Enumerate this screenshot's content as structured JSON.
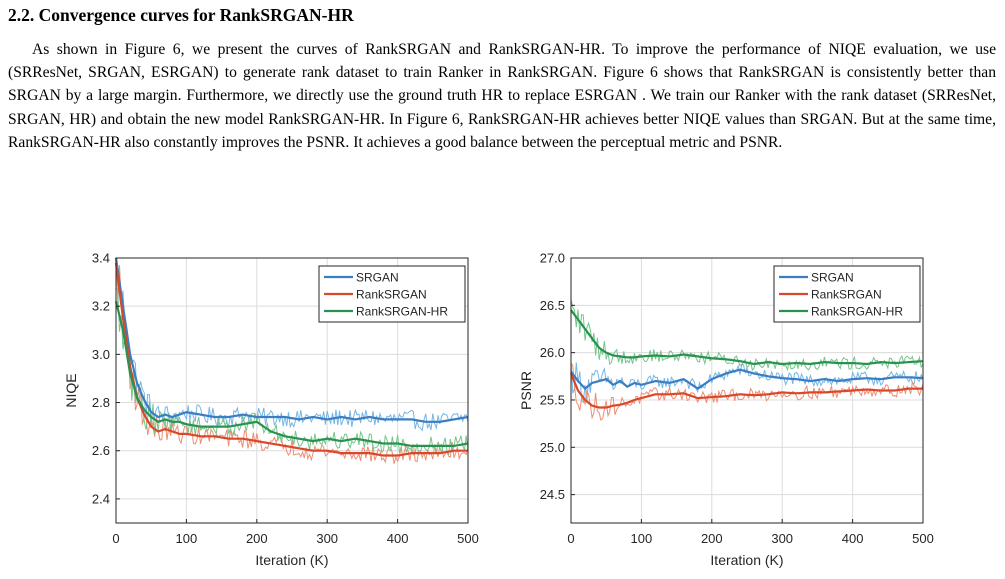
{
  "section": {
    "heading": "2.2. Convergence curves for RankSRGAN-HR",
    "paragraph": "As shown in Figure 6, we present the curves of RankSRGAN and RankSRGAN-HR. To improve the performance of NIQE evaluation, we use (SRResNet, SRGAN, ESRGAN) to generate rank dataset to train Ranker in RankSRGAN. Figure 6 shows that RankSRGAN is consistently better than SRGAN by a large margin. Furthermore, we directly use the ground truth HR to replace ESRGAN . We train our Ranker with the rank dataset (SRResNet, SRGAN, HR) and obtain the new model RankSRGAN-HR. In Figure 6, RankSRGAN-HR achieves better NIQE values than SRGAN. But at the same time, RankSRGAN-HR also constantly improves the PSNR. It achieves a good balance between the perceptual metric and PSNR."
  },
  "colors": {
    "SRGAN": "#3a7dc1",
    "SRGAN_raw": "#74b6e6",
    "RankSRGAN": "#d8482b",
    "RankSRGAN_raw": "#ee8d72",
    "RankSRGAN-HR": "#2a9150",
    "RankSRGAN-HR_raw": "#74c58a",
    "grid": "#dcdcdc"
  },
  "chart_data": [
    {
      "type": "line",
      "title": "",
      "xlabel": "Iteration (K)",
      "ylabel": "NIQE",
      "xlim": [
        0,
        500
      ],
      "ylim": [
        2.3,
        3.4
      ],
      "xticks": [
        0,
        100,
        200,
        300,
        400,
        500
      ],
      "yticks": [
        2.4,
        2.6,
        2.8,
        3.0,
        3.2,
        3.4
      ],
      "ytick_labels": [
        "2.4",
        "2.6",
        "2.8",
        "3.0",
        "3.2",
        "3.4"
      ],
      "grid": true,
      "legend_position": "top-right",
      "series": [
        {
          "name": "SRGAN",
          "x": [
            0,
            10,
            20,
            30,
            40,
            50,
            60,
            70,
            80,
            90,
            100,
            120,
            140,
            160,
            180,
            200,
            220,
            240,
            260,
            280,
            300,
            320,
            340,
            360,
            380,
            400,
            420,
            440,
            460,
            480,
            500
          ],
          "values": [
            3.4,
            3.2,
            3.0,
            2.88,
            2.81,
            2.76,
            2.74,
            2.75,
            2.74,
            2.75,
            2.76,
            2.75,
            2.74,
            2.74,
            2.75,
            2.74,
            2.74,
            2.74,
            2.73,
            2.74,
            2.73,
            2.74,
            2.73,
            2.74,
            2.73,
            2.73,
            2.73,
            2.72,
            2.72,
            2.73,
            2.74
          ]
        },
        {
          "name": "RankSRGAN",
          "x": [
            0,
            10,
            20,
            30,
            40,
            50,
            60,
            70,
            80,
            90,
            100,
            120,
            140,
            160,
            180,
            200,
            220,
            240,
            260,
            280,
            300,
            320,
            340,
            360,
            380,
            400,
            420,
            440,
            460,
            480,
            500
          ],
          "values": [
            3.38,
            3.15,
            2.95,
            2.82,
            2.75,
            2.7,
            2.68,
            2.69,
            2.68,
            2.67,
            2.67,
            2.66,
            2.66,
            2.65,
            2.65,
            2.64,
            2.63,
            2.62,
            2.61,
            2.6,
            2.6,
            2.59,
            2.59,
            2.59,
            2.58,
            2.58,
            2.59,
            2.59,
            2.59,
            2.6,
            2.6
          ]
        },
        {
          "name": "RankSRGAN-HR",
          "x": [
            0,
            10,
            20,
            30,
            40,
            50,
            60,
            70,
            80,
            90,
            100,
            120,
            140,
            160,
            180,
            200,
            220,
            240,
            260,
            280,
            300,
            320,
            340,
            360,
            380,
            400,
            420,
            440,
            460,
            480,
            500
          ],
          "values": [
            3.22,
            3.1,
            2.92,
            2.82,
            2.77,
            2.74,
            2.72,
            2.73,
            2.72,
            2.72,
            2.71,
            2.7,
            2.7,
            2.7,
            2.71,
            2.72,
            2.68,
            2.66,
            2.65,
            2.64,
            2.65,
            2.64,
            2.65,
            2.64,
            2.63,
            2.63,
            2.62,
            2.62,
            2.62,
            2.62,
            2.63
          ]
        }
      ]
    },
    {
      "type": "line",
      "title": "",
      "xlabel": "Iteration (K)",
      "ylabel": "PSNR",
      "xlim": [
        0,
        500
      ],
      "ylim": [
        24.2,
        27.0
      ],
      "xticks": [
        0,
        100,
        200,
        300,
        400,
        500
      ],
      "yticks": [
        24.5,
        25.0,
        25.5,
        26.0,
        26.5,
        27.0
      ],
      "ytick_labels": [
        "24.5",
        "25.0",
        "25.5",
        "26.0",
        "26.5",
        "27.0"
      ],
      "grid": true,
      "legend_position": "top-right",
      "series": [
        {
          "name": "SRGAN",
          "x": [
            0,
            10,
            20,
            30,
            40,
            50,
            60,
            70,
            80,
            90,
            100,
            120,
            140,
            160,
            180,
            200,
            220,
            240,
            260,
            280,
            300,
            320,
            340,
            360,
            380,
            400,
            420,
            440,
            460,
            480,
            500
          ],
          "values": [
            25.8,
            25.7,
            25.62,
            25.68,
            25.7,
            25.72,
            25.66,
            25.7,
            25.64,
            25.68,
            25.66,
            25.7,
            25.68,
            25.72,
            25.62,
            25.72,
            25.78,
            25.82,
            25.78,
            25.75,
            25.73,
            25.72,
            25.7,
            25.72,
            25.7,
            25.72,
            25.73,
            25.72,
            25.74,
            25.74,
            25.73
          ]
        },
        {
          "name": "RankSRGAN",
          "x": [
            0,
            10,
            20,
            30,
            40,
            50,
            60,
            70,
            80,
            90,
            100,
            120,
            140,
            160,
            180,
            200,
            220,
            240,
            260,
            280,
            300,
            320,
            340,
            360,
            380,
            400,
            420,
            440,
            460,
            480,
            500
          ],
          "values": [
            25.78,
            25.6,
            25.5,
            25.44,
            25.42,
            25.42,
            25.44,
            25.45,
            25.47,
            25.5,
            25.52,
            25.56,
            25.56,
            25.57,
            25.52,
            25.53,
            25.54,
            25.56,
            25.55,
            25.56,
            25.58,
            25.57,
            25.58,
            25.58,
            25.59,
            25.6,
            25.61,
            25.6,
            25.6,
            25.62,
            25.62
          ]
        },
        {
          "name": "RankSRGAN-HR",
          "x": [
            0,
            10,
            20,
            30,
            40,
            50,
            60,
            70,
            80,
            90,
            100,
            120,
            140,
            160,
            180,
            200,
            220,
            240,
            260,
            280,
            300,
            320,
            340,
            360,
            380,
            400,
            420,
            440,
            460,
            480,
            500
          ],
          "values": [
            26.45,
            26.35,
            26.25,
            26.15,
            26.05,
            26.0,
            25.97,
            25.96,
            25.95,
            25.95,
            25.96,
            25.97,
            25.96,
            25.98,
            25.96,
            25.94,
            25.93,
            25.91,
            25.88,
            25.9,
            25.88,
            25.89,
            25.88,
            25.9,
            25.89,
            25.89,
            25.88,
            25.9,
            25.89,
            25.9,
            25.91
          ]
        }
      ]
    }
  ]
}
